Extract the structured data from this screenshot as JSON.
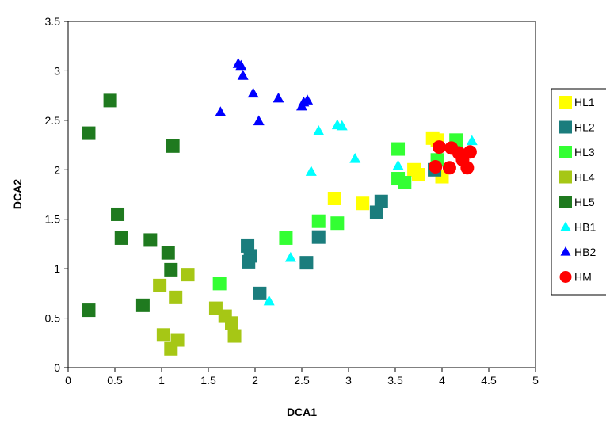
{
  "chart_data": {
    "type": "scatter",
    "title": "",
    "xlabel": "DCA1",
    "ylabel": "DCA2",
    "xlim": [
      0,
      5
    ],
    "ylim": [
      0,
      3.5
    ],
    "xticks": [
      0,
      0.5,
      1,
      1.5,
      2,
      2.5,
      3,
      3.5,
      4,
      4.5,
      5
    ],
    "xtick_labels": [
      "0",
      "0.5",
      "1",
      "1.5",
      "2",
      "2.5",
      "3",
      "3.5",
      "4",
      "4.5",
      "5"
    ],
    "yticks": [
      0,
      0.5,
      1,
      1.5,
      2,
      2.5,
      3,
      3.5
    ],
    "ytick_labels": [
      "0",
      "0.5",
      "1",
      "1.5",
      "2",
      "2.5",
      "3",
      "3.5"
    ],
    "grid": false,
    "legend_position": "right",
    "series": [
      {
        "name": "HL1",
        "marker": "square",
        "color": "#FFFF00",
        "points": [
          [
            2.85,
            1.71
          ],
          [
            3.15,
            1.66
          ],
          [
            3.7,
            2.0
          ],
          [
            3.75,
            1.95
          ],
          [
            3.9,
            2.32
          ],
          [
            3.95,
            2.3
          ],
          [
            4.0,
            1.93
          ]
        ]
      },
      {
        "name": "HL2",
        "marker": "square",
        "color": "#1B7D7D",
        "points": [
          [
            1.92,
            1.23
          ],
          [
            1.95,
            1.13
          ],
          [
            1.93,
            1.07
          ],
          [
            2.05,
            0.75
          ],
          [
            2.55,
            1.06
          ],
          [
            2.68,
            1.32
          ],
          [
            3.3,
            1.57
          ],
          [
            3.35,
            1.68
          ],
          [
            3.92,
            2.0
          ]
        ]
      },
      {
        "name": "HL3",
        "marker": "square",
        "color": "#33FF33",
        "points": [
          [
            1.62,
            0.85
          ],
          [
            2.33,
            1.31
          ],
          [
            2.68,
            1.48
          ],
          [
            2.88,
            1.46
          ],
          [
            3.53,
            2.21
          ],
          [
            3.53,
            1.91
          ],
          [
            3.6,
            1.87
          ],
          [
            3.95,
            2.1
          ],
          [
            4.15,
            2.3
          ]
        ]
      },
      {
        "name": "HL4",
        "marker": "square",
        "color": "#A6C715",
        "points": [
          [
            0.98,
            0.83
          ],
          [
            1.02,
            0.33
          ],
          [
            1.1,
            0.19
          ],
          [
            1.15,
            0.71
          ],
          [
            1.17,
            0.28
          ],
          [
            1.28,
            0.94
          ],
          [
            1.58,
            0.6
          ],
          [
            1.68,
            0.52
          ],
          [
            1.75,
            0.45
          ],
          [
            1.78,
            0.32
          ]
        ]
      },
      {
        "name": "HL5",
        "marker": "square",
        "color": "#1F7A1F",
        "points": [
          [
            0.22,
            2.37
          ],
          [
            0.22,
            0.58
          ],
          [
            0.45,
            2.7
          ],
          [
            0.53,
            1.55
          ],
          [
            0.57,
            1.31
          ],
          [
            0.8,
            0.63
          ],
          [
            0.88,
            1.29
          ],
          [
            1.07,
            1.16
          ],
          [
            1.1,
            0.99
          ],
          [
            1.12,
            2.24
          ]
        ]
      },
      {
        "name": "HB1",
        "marker": "triangle",
        "color": "#00FFFF",
        "points": [
          [
            2.15,
            0.67
          ],
          [
            2.38,
            1.11
          ],
          [
            2.6,
            1.98
          ],
          [
            2.68,
            2.39
          ],
          [
            2.88,
            2.45
          ],
          [
            2.93,
            2.44
          ],
          [
            3.07,
            2.11
          ],
          [
            3.53,
            2.04
          ],
          [
            4.32,
            2.29
          ]
        ]
      },
      {
        "name": "HB2",
        "marker": "triangle",
        "color": "#0000FF",
        "points": [
          [
            1.63,
            2.58
          ],
          [
            1.82,
            3.07
          ],
          [
            1.85,
            3.05
          ],
          [
            1.87,
            2.95
          ],
          [
            1.98,
            2.77
          ],
          [
            2.04,
            2.49
          ],
          [
            2.25,
            2.72
          ],
          [
            2.5,
            2.64
          ],
          [
            2.52,
            2.68
          ],
          [
            2.56,
            2.7
          ]
        ]
      },
      {
        "name": "HM",
        "marker": "circle",
        "color": "#FF0000",
        "points": [
          [
            3.93,
            2.03
          ],
          [
            3.97,
            2.23
          ],
          [
            4.08,
            2.02
          ],
          [
            4.1,
            2.22
          ],
          [
            4.18,
            2.17
          ],
          [
            4.22,
            2.1
          ],
          [
            4.27,
            2.02
          ],
          [
            4.3,
            2.18
          ]
        ]
      }
    ]
  }
}
